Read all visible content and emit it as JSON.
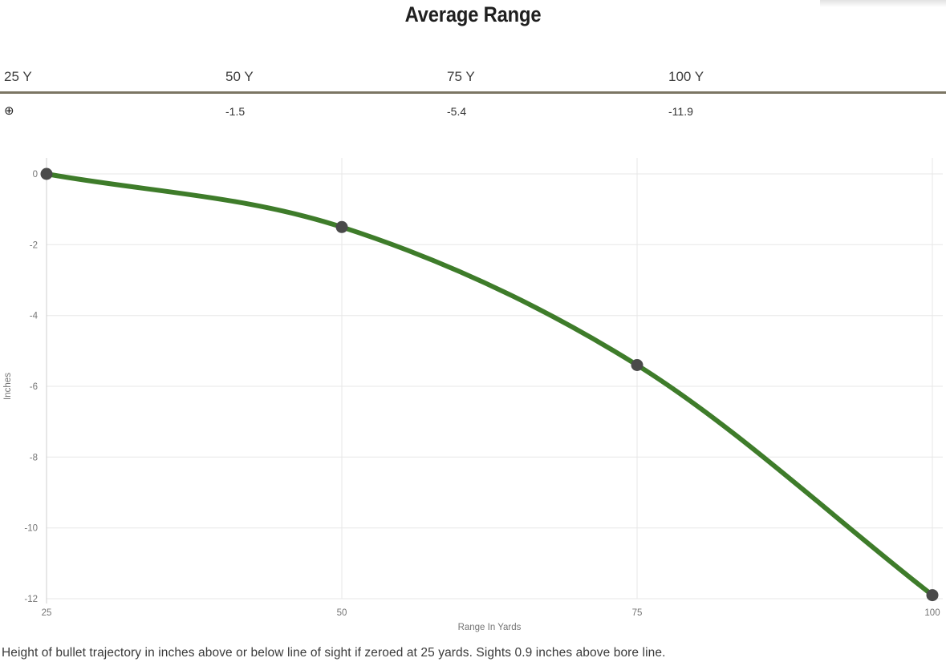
{
  "title": "Average Range",
  "table": {
    "headers": [
      "25 Y",
      "50 Y",
      "75 Y",
      "100 Y"
    ],
    "values": [
      "⊕",
      "-1.5",
      "-5.4",
      "-11.9"
    ]
  },
  "chart_data": {
    "type": "line",
    "title": "Average Range",
    "x": [
      25,
      50,
      75,
      100
    ],
    "y": [
      0,
      -1.5,
      -5.4,
      -11.9
    ],
    "xlabel": "Range In Yards",
    "ylabel": "Inches",
    "x_ticks": [
      "25",
      "50",
      "75",
      "100"
    ],
    "x_tick_values": [
      25,
      50,
      75,
      100
    ],
    "y_ticks": [
      "0",
      "-2",
      "-4",
      "-6",
      "-8",
      "-10",
      "-12"
    ],
    "y_tick_values": [
      0,
      -2,
      -4,
      -6,
      -8,
      -10,
      -12
    ],
    "xlim": [
      25,
      100
    ],
    "ylim": [
      -12,
      0
    ],
    "grid": true,
    "legend": "none",
    "line_color": "#3e7c2a",
    "marker_color": "#4a4a4a",
    "grid_color": "#e7e7e7",
    "axis_color": "#cfcfcf",
    "tick_label_color": "#757575"
  },
  "colors": {
    "table_divider": "#7b7563",
    "title_text": "#1f1f1f"
  },
  "caption": "Height of bullet trajectory in inches above or below line of sight if zeroed at 25 yards. Sights 0.9 inches above bore line."
}
